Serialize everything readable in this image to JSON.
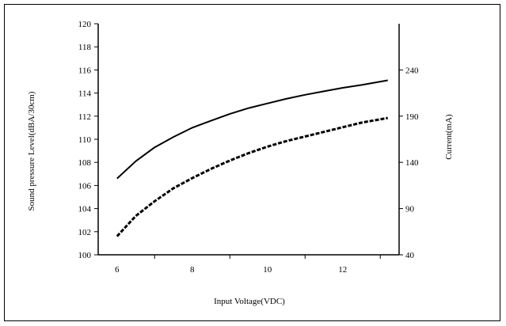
{
  "chart_data": {
    "type": "line",
    "xlabel": "Input Voltage(VDC)",
    "ylabel": "Sound pressure Level(dBA/30cm)",
    "y2label": "Current(mA)",
    "xlim": [
      5.5,
      13.5
    ],
    "ylim": [
      100,
      120
    ],
    "y2lim": [
      40,
      290
    ],
    "x_ticks": [
      6,
      8,
      10,
      12
    ],
    "y_ticks": [
      100,
      102,
      104,
      106,
      108,
      110,
      112,
      114,
      116,
      118,
      120
    ],
    "y2_ticks": [
      40,
      90,
      140,
      190,
      240
    ],
    "grid": false,
    "legend": "none",
    "series": [
      {
        "axis": "left",
        "style": "solid",
        "color": "#000000",
        "x": [
          6,
          6.5,
          7,
          7.5,
          8,
          8.5,
          9,
          9.5,
          10,
          10.5,
          11,
          11.5,
          12,
          12.5,
          13.2
        ],
        "y": [
          106.6,
          108.1,
          109.3,
          110.2,
          111.0,
          111.6,
          112.2,
          112.7,
          113.1,
          113.5,
          113.85,
          114.15,
          114.45,
          114.7,
          115.1
        ]
      },
      {
        "axis": "right",
        "style": "dashed",
        "color": "#000000",
        "x": [
          6,
          6.5,
          7,
          7.5,
          8,
          8.5,
          9,
          9.5,
          10,
          10.5,
          11,
          11.5,
          12,
          12.5,
          13.2
        ],
        "y": [
          60,
          82,
          98,
          112,
          123,
          133,
          142,
          150,
          157,
          163,
          168,
          173,
          178,
          183,
          188
        ]
      }
    ]
  }
}
